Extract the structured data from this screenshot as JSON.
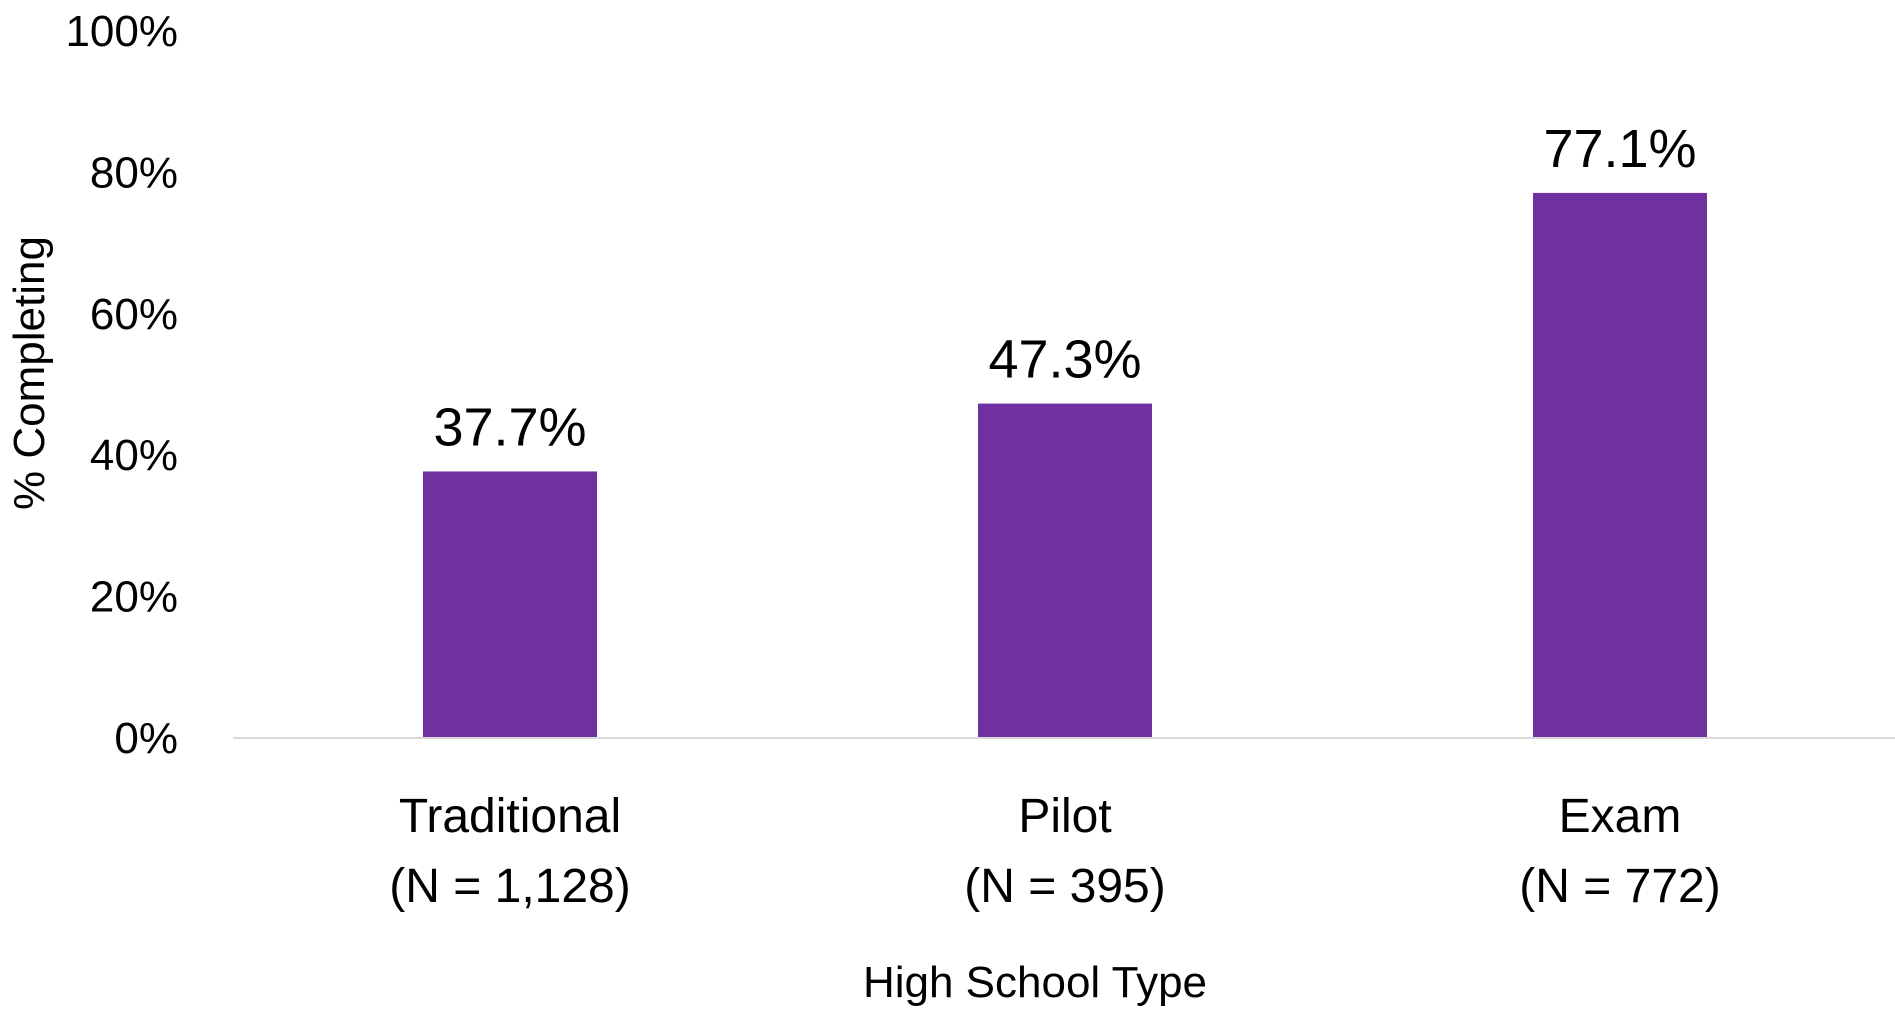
{
  "chart_data": {
    "type": "bar",
    "title": "",
    "xlabel": "High School Type",
    "ylabel": "% Completing",
    "ylim": [
      0,
      100
    ],
    "yticks": [
      0,
      20,
      40,
      60,
      80,
      100
    ],
    "ytick_labels": [
      "0%",
      "20%",
      "40%",
      "60%",
      "80%",
      "100%"
    ],
    "grid": false,
    "legend": "none",
    "categories": [
      "Traditional",
      "Pilot",
      "Exam"
    ],
    "category_sublabels": [
      "(N = 1,128)",
      "(N = 395)",
      "(N = 772)"
    ],
    "values": [
      37.7,
      47.3,
      77.1
    ],
    "value_labels": [
      "37.7%",
      "47.3%",
      "77.1%"
    ],
    "bar_color": "#7030A0",
    "axis_line_color": "#D9D9D9"
  }
}
